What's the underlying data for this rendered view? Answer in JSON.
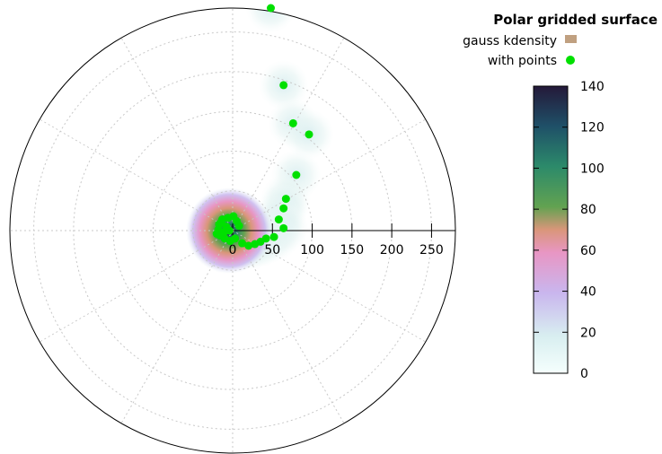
{
  "chart_data": {
    "type": "heatmap",
    "projection": "polar",
    "title": "Polar gridded surface",
    "grid": true,
    "legend_position": "top-right",
    "r_axis": {
      "ticks": [
        0,
        50,
        100,
        150,
        200,
        250
      ],
      "tick_labels": [
        "0",
        "50",
        "100",
        "150",
        "200",
        "250"
      ],
      "range": [
        0,
        280
      ]
    },
    "colorbar": {
      "range": [
        0,
        140
      ],
      "ticks": [
        0,
        20,
        40,
        60,
        80,
        100,
        120,
        140
      ],
      "tick_labels": [
        "0",
        "20",
        "40",
        "60",
        "80",
        "100",
        "120",
        "140"
      ],
      "colors": [
        "#f5fffd",
        "#d8eef0",
        "#c9b6ee",
        "#e896c4",
        "#d9967a",
        "#62a251",
        "#2c8a6a",
        "#1f5068",
        "#241939"
      ]
    },
    "series": [
      {
        "name": "gauss kdensity",
        "kind": "surface",
        "color": "#c0a080",
        "peak_value": 140
      },
      {
        "name": "with points",
        "kind": "points",
        "color": "#00e000",
        "points": [
          {
            "x": 48,
            "y": 280
          },
          {
            "x": 64,
            "y": 183
          },
          {
            "x": 76,
            "y": 135
          },
          {
            "x": 96,
            "y": 121
          },
          {
            "x": 80,
            "y": 70
          },
          {
            "x": 67,
            "y": 40
          },
          {
            "x": 64,
            "y": 28
          },
          {
            "x": 58,
            "y": 14
          },
          {
            "x": 64,
            "y": 3
          },
          {
            "x": 52,
            "y": -8
          },
          {
            "x": 42,
            "y": -10
          },
          {
            "x": 35,
            "y": -14
          },
          {
            "x": 28,
            "y": -17
          },
          {
            "x": 20,
            "y": -19
          },
          {
            "x": 12,
            "y": -16
          },
          {
            "x": 3,
            "y": -10
          },
          {
            "x": -3,
            "y": -13
          },
          {
            "x": -10,
            "y": -10
          },
          {
            "x": -16,
            "y": -6
          },
          {
            "x": -18,
            "y": 1
          },
          {
            "x": -17,
            "y": 8
          },
          {
            "x": -13,
            "y": 14
          },
          {
            "x": -6,
            "y": 16
          },
          {
            "x": 1,
            "y": 18
          },
          {
            "x": 5,
            "y": 12
          },
          {
            "x": -8,
            "y": 5
          },
          {
            "x": -11,
            "y": -2
          },
          {
            "x": -4,
            "y": 0
          },
          {
            "x": -14,
            "y": 11
          },
          {
            "x": -20,
            "y": -4
          },
          {
            "x": 8,
            "y": 6
          }
        ]
      }
    ]
  }
}
